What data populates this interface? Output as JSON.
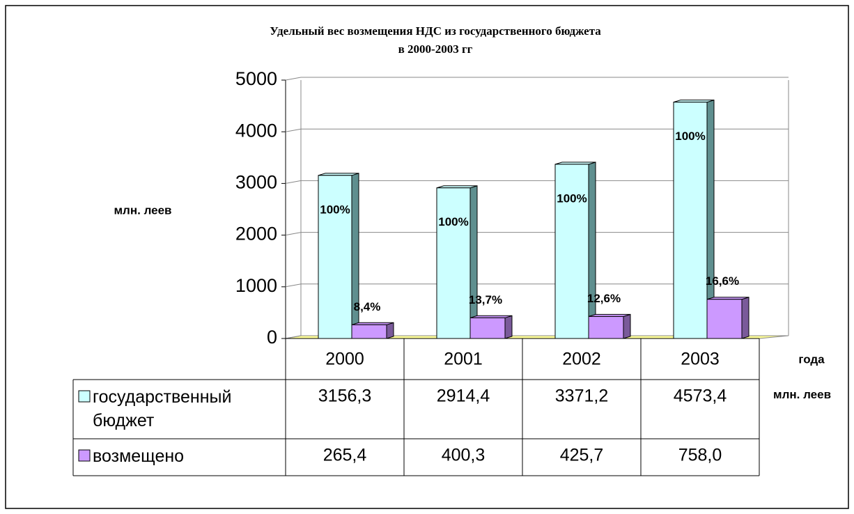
{
  "chart_data": {
    "type": "bar3d",
    "title": "Удельный вес возмещения НДС из государственного бюджета",
    "subtitle": "в 2000-2003 гг",
    "y_label": "млн. леев",
    "x_label": "года",
    "table_unit": "млн. леев",
    "categories": [
      "2000",
      "2001",
      "2002",
      "2003"
    ],
    "series": [
      {
        "name": "государственный бюджет",
        "color": "#ccffff",
        "side_color": "#5f8f8f",
        "values": [
          3156.3,
          2914.4,
          3371.2,
          4573.4
        ],
        "value_labels": [
          "3156,3",
          "2914,4",
          "3371,2",
          "4573,4"
        ],
        "shares": [
          100,
          100,
          100,
          100
        ],
        "share_labels": [
          "100%",
          "100%",
          "100%",
          "100%"
        ]
      },
      {
        "name": "возмещено",
        "color": "#cc99ff",
        "side_color": "#7a5a9a",
        "values": [
          265.4,
          400.3,
          425.7,
          758.0
        ],
        "value_labels": [
          "265,4",
          "400,3",
          "425,7",
          "758,0"
        ],
        "shares": [
          8.4,
          13.7,
          12.6,
          16.6
        ],
        "share_labels": [
          "8,4%",
          "13,7%",
          "12,6%",
          "16,6%"
        ]
      }
    ],
    "ylim": [
      0,
      5000
    ],
    "yticks": [
      0,
      1000,
      2000,
      3000,
      4000,
      5000
    ],
    "grid": true
  }
}
